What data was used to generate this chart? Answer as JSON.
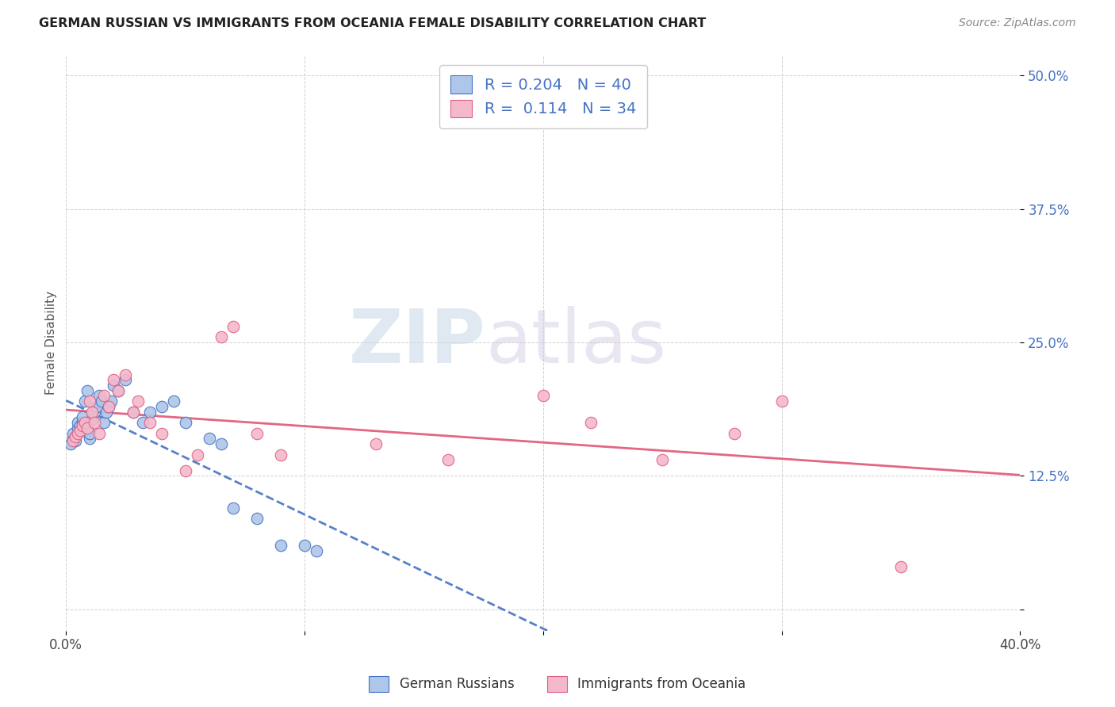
{
  "title": "GERMAN RUSSIAN VS IMMIGRANTS FROM OCEANIA FEMALE DISABILITY CORRELATION CHART",
  "source": "Source: ZipAtlas.com",
  "xlabel": "",
  "ylabel": "Female Disability",
  "xlim": [
    0.0,
    0.4
  ],
  "ylim": [
    -0.02,
    0.52
  ],
  "yticks": [
    0.0,
    0.125,
    0.25,
    0.375,
    0.5
  ],
  "ytick_labels": [
    "",
    "12.5%",
    "25.0%",
    "37.5%",
    "50.0%"
  ],
  "xticks": [
    0.0,
    0.1,
    0.2,
    0.3,
    0.4
  ],
  "xtick_labels": [
    "0.0%",
    "",
    "",
    "",
    "40.0%"
  ],
  "blue_color": "#aec6e8",
  "pink_color": "#f4b8cc",
  "blue_edge_color": "#4472c4",
  "pink_edge_color": "#e0607e",
  "blue_line_color": "#4472c4",
  "pink_line_color": "#e05575",
  "watermark_zip": "ZIP",
  "watermark_atlas": "atlas",
  "blue_R": 0.204,
  "blue_N": 40,
  "pink_R": 0.114,
  "pink_N": 34,
  "blue_x": [
    0.002,
    0.003,
    0.003,
    0.004,
    0.004,
    0.005,
    0.005,
    0.006,
    0.006,
    0.007,
    0.007,
    0.008,
    0.009,
    0.01,
    0.01,
    0.011,
    0.012,
    0.013,
    0.014,
    0.015,
    0.016,
    0.017,
    0.018,
    0.019,
    0.02,
    0.022,
    0.025,
    0.028,
    0.032,
    0.035,
    0.04,
    0.045,
    0.05,
    0.06,
    0.065,
    0.07,
    0.08,
    0.09,
    0.1,
    0.105
  ],
  "blue_y": [
    0.155,
    0.16,
    0.165,
    0.162,
    0.158,
    0.17,
    0.175,
    0.168,
    0.172,
    0.175,
    0.18,
    0.195,
    0.205,
    0.16,
    0.165,
    0.178,
    0.185,
    0.19,
    0.2,
    0.195,
    0.175,
    0.185,
    0.19,
    0.195,
    0.21,
    0.205,
    0.215,
    0.185,
    0.175,
    0.185,
    0.19,
    0.195,
    0.175,
    0.16,
    0.155,
    0.095,
    0.085,
    0.06,
    0.06,
    0.055
  ],
  "pink_x": [
    0.003,
    0.004,
    0.005,
    0.006,
    0.007,
    0.008,
    0.009,
    0.01,
    0.011,
    0.012,
    0.014,
    0.016,
    0.018,
    0.02,
    0.022,
    0.025,
    0.028,
    0.03,
    0.035,
    0.04,
    0.05,
    0.055,
    0.065,
    0.07,
    0.08,
    0.09,
    0.13,
    0.16,
    0.2,
    0.22,
    0.25,
    0.28,
    0.3,
    0.35
  ],
  "pink_y": [
    0.158,
    0.162,
    0.165,
    0.168,
    0.172,
    0.175,
    0.17,
    0.195,
    0.185,
    0.175,
    0.165,
    0.2,
    0.19,
    0.215,
    0.205,
    0.22,
    0.185,
    0.195,
    0.175,
    0.165,
    0.13,
    0.145,
    0.255,
    0.265,
    0.165,
    0.145,
    0.155,
    0.14,
    0.2,
    0.175,
    0.14,
    0.165,
    0.195,
    0.04
  ]
}
